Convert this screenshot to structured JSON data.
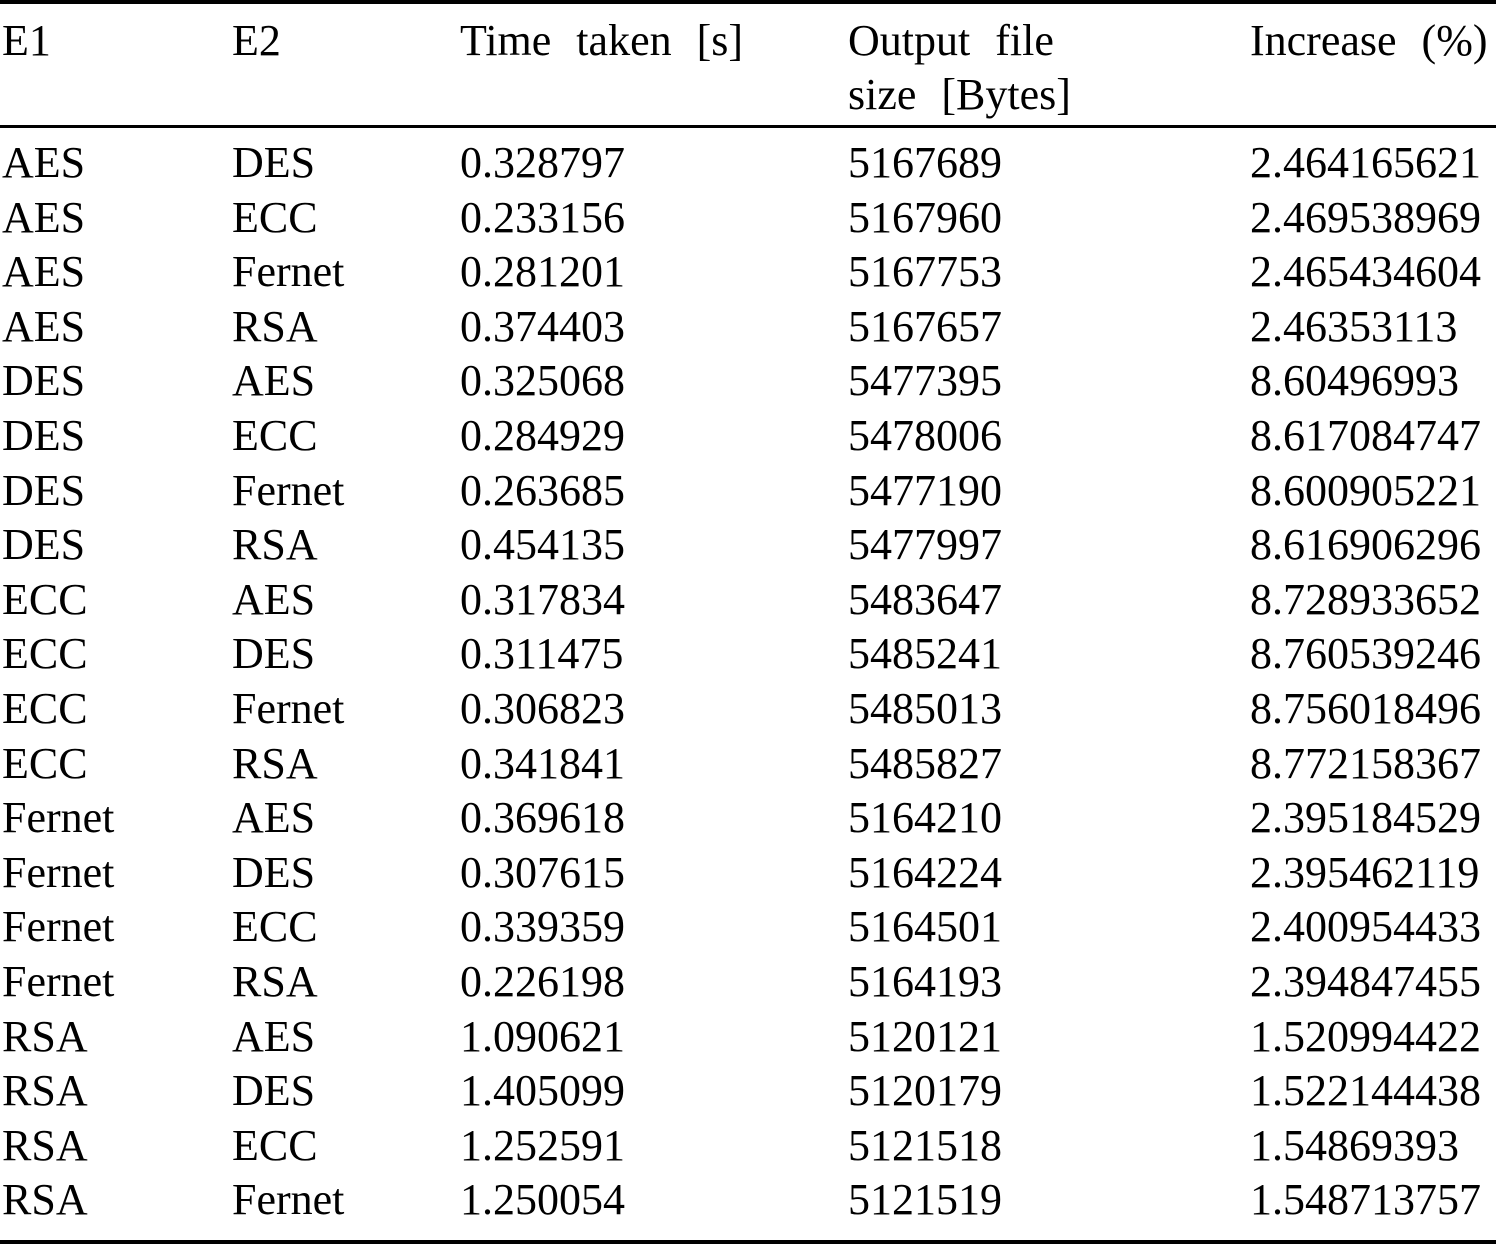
{
  "table": {
    "headers": {
      "e1": "E1",
      "e2": "E2",
      "time": "Time taken [s]",
      "size_line1": "Output file",
      "size_line2": "size [Bytes]",
      "increase": "Increase (%)"
    },
    "rows": [
      {
        "e1": "AES",
        "e2": "DES",
        "time": "0.328797",
        "size": "5167689",
        "increase": "2.464165621"
      },
      {
        "e1": "AES",
        "e2": "ECC",
        "time": "0.233156",
        "size": "5167960",
        "increase": "2.469538969"
      },
      {
        "e1": "AES",
        "e2": "Fernet",
        "time": "0.281201",
        "size": "5167753",
        "increase": "2.465434604"
      },
      {
        "e1": "AES",
        "e2": "RSA",
        "time": "0.374403",
        "size": "5167657",
        "increase": "2.46353113"
      },
      {
        "e1": "DES",
        "e2": "AES",
        "time": "0.325068",
        "size": "5477395",
        "increase": "8.60496993"
      },
      {
        "e1": "DES",
        "e2": "ECC",
        "time": "0.284929",
        "size": "5478006",
        "increase": "8.617084747"
      },
      {
        "e1": "DES",
        "e2": "Fernet",
        "time": "0.263685",
        "size": "5477190",
        "increase": "8.600905221"
      },
      {
        "e1": "DES",
        "e2": "RSA",
        "time": "0.454135",
        "size": "5477997",
        "increase": "8.616906296"
      },
      {
        "e1": "ECC",
        "e2": "AES",
        "time": "0.317834",
        "size": "5483647",
        "increase": "8.728933652"
      },
      {
        "e1": "ECC",
        "e2": "DES",
        "time": "0.311475",
        "size": "5485241",
        "increase": "8.760539246"
      },
      {
        "e1": "ECC",
        "e2": "Fernet",
        "time": "0.306823",
        "size": "5485013",
        "increase": "8.756018496"
      },
      {
        "e1": "ECC",
        "e2": "RSA",
        "time": "0.341841",
        "size": "5485827",
        "increase": "8.772158367"
      },
      {
        "e1": "Fernet",
        "e2": "AES",
        "time": "0.369618",
        "size": "5164210",
        "increase": "2.395184529"
      },
      {
        "e1": "Fernet",
        "e2": "DES",
        "time": "0.307615",
        "size": "5164224",
        "increase": "2.395462119"
      },
      {
        "e1": "Fernet",
        "e2": "ECC",
        "time": "0.339359",
        "size": "5164501",
        "increase": "2.400954433"
      },
      {
        "e1": "Fernet",
        "e2": "RSA",
        "time": "0.226198",
        "size": "5164193",
        "increase": "2.394847455"
      },
      {
        "e1": "RSA",
        "e2": "AES",
        "time": "1.090621",
        "size": "5120121",
        "increase": "1.520994422"
      },
      {
        "e1": "RSA",
        "e2": "DES",
        "time": "1.405099",
        "size": "5120179",
        "increase": "1.522144438"
      },
      {
        "e1": "RSA",
        "e2": "ECC",
        "time": "1.252591",
        "size": "5121518",
        "increase": "1.54869393"
      },
      {
        "e1": "RSA",
        "e2": "Fernet",
        "time": "1.250054",
        "size": "5121519",
        "increase": "1.548713757"
      }
    ]
  }
}
